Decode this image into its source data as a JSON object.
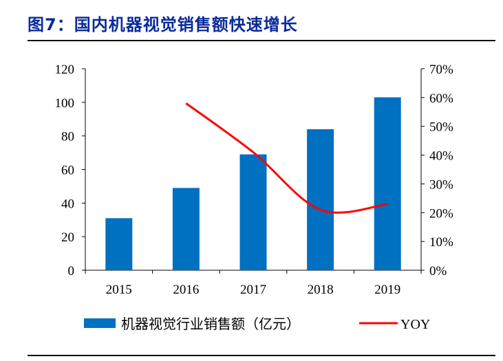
{
  "title": "图7：国内机器视觉销售额快速增长",
  "chart_data": {
    "type": "bar+line",
    "categories": [
      "2015",
      "2016",
      "2017",
      "2018",
      "2019"
    ],
    "series": [
      {
        "name": "机器视觉行业销售额（亿元）",
        "type": "bar",
        "axis": "left",
        "color": "#0070c0",
        "values": [
          31,
          49,
          69,
          84,
          103
        ]
      },
      {
        "name": "YOY",
        "type": "line",
        "axis": "right",
        "color": "#ff0000",
        "values": [
          null,
          58,
          41,
          21,
          23
        ]
      }
    ],
    "y_left": {
      "min": 0,
      "max": 120,
      "ticks": [
        "0",
        "20",
        "40",
        "60",
        "80",
        "100",
        "120"
      ]
    },
    "y_right": {
      "min": 0,
      "max": 70,
      "ticks": [
        "0%",
        "10%",
        "20%",
        "30%",
        "40%",
        "50%",
        "60%",
        "70%"
      ]
    },
    "legend": {
      "bar_label": "机器视觉行业销售额（亿元）",
      "line_label": "YOY",
      "position": "bottom"
    }
  }
}
